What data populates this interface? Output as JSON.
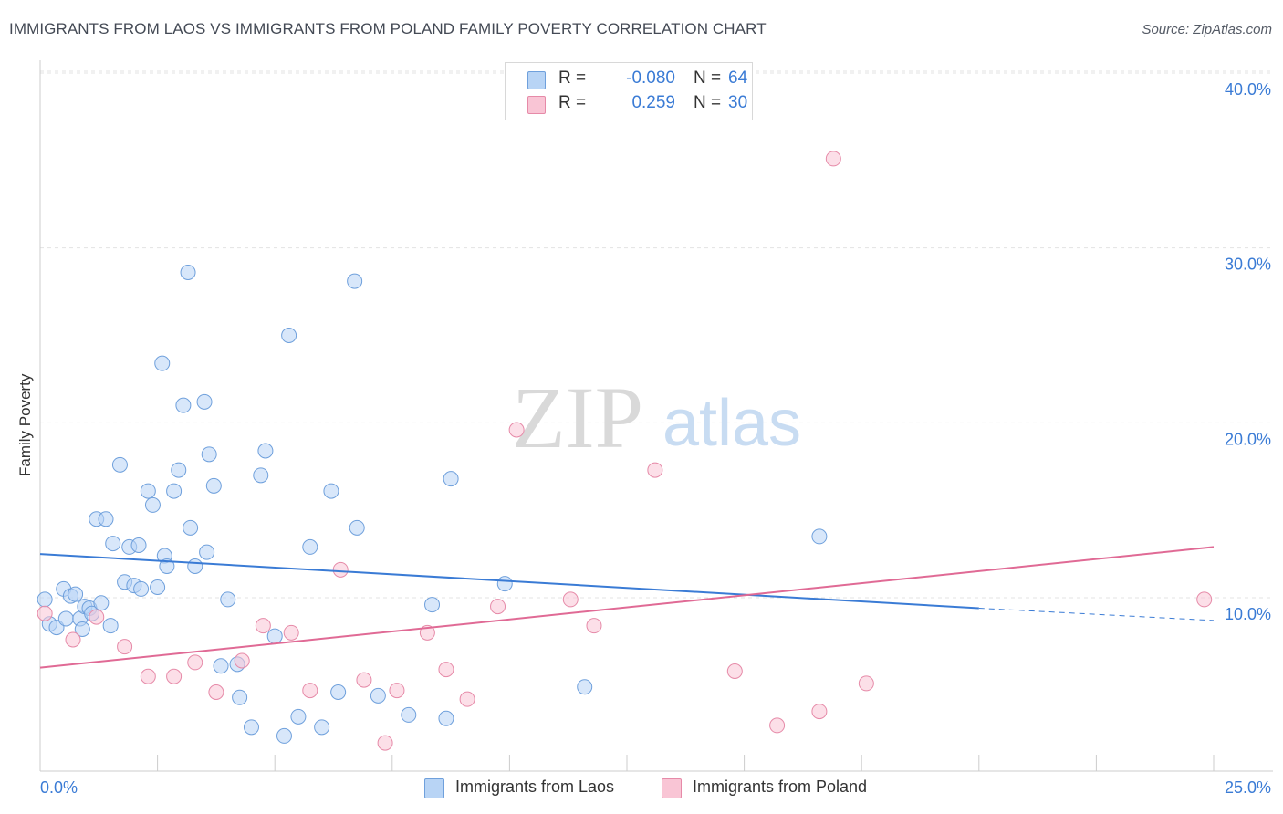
{
  "title": "IMMIGRANTS FROM LAOS VS IMMIGRANTS FROM POLAND FAMILY POVERTY CORRELATION CHART",
  "source": "Source: ZipAtlas.com",
  "watermark": {
    "zip": "ZIP",
    "atlas": "atlas"
  },
  "legend": {
    "rows": [
      {
        "r_label": "R =",
        "r_value": "-0.080",
        "n_label": "N =",
        "n_value": "64",
        "color": "#b8d4f5",
        "border": "#6fa0dc"
      },
      {
        "r_label": "R =",
        "r_value": "0.259",
        "n_label": "N =",
        "n_value": "30",
        "color": "#f9c5d5",
        "border": "#e68aa8"
      }
    ]
  },
  "bottom_legend": [
    {
      "label": "Immigrants from Laos",
      "color": "#b8d4f5",
      "border": "#6fa0dc"
    },
    {
      "label": "Immigrants from Poland",
      "color": "#f9c5d5",
      "border": "#e68aa8"
    }
  ],
  "chart_data": {
    "type": "scatter",
    "title": "IMMIGRANTS FROM LAOS VS IMMIGRANTS FROM POLAND FAMILY POVERTY CORRELATION CHART",
    "xlabel": "",
    "ylabel": "Family Poverty",
    "xlim": [
      0,
      25
    ],
    "ylim": [
      0,
      40
    ],
    "x_tick_labels": [
      "0.0%",
      "25.0%"
    ],
    "y_ticks": [
      10,
      20,
      30,
      40
    ],
    "y_tick_labels": [
      "10.0%",
      "20.0%",
      "30.0%",
      "40.0%"
    ],
    "grid": true,
    "legend_position": "top-center",
    "colors": {
      "laos": "#3a7bd5",
      "poland": "#e06a95",
      "laos_fill": "#b8d4f5",
      "poland_fill": "#f9c5d5"
    },
    "series": [
      {
        "name": "Immigrants from Laos",
        "r": -0.08,
        "n": 64,
        "trend": {
          "x": [
            0,
            20
          ],
          "y": [
            12.5,
            9.4
          ],
          "dashed_to_x": 25,
          "dashed_end_y": 8.7
        },
        "points": [
          [
            0.1,
            9.9
          ],
          [
            0.2,
            8.5
          ],
          [
            0.35,
            8.3
          ],
          [
            0.5,
            10.5
          ],
          [
            0.55,
            8.8
          ],
          [
            0.65,
            10.1
          ],
          [
            0.75,
            10.2
          ],
          [
            0.85,
            8.8
          ],
          [
            0.95,
            9.5
          ],
          [
            1.05,
            9.4
          ],
          [
            1.1,
            9.1
          ],
          [
            1.3,
            9.7
          ],
          [
            1.2,
            14.5
          ],
          [
            1.4,
            14.5
          ],
          [
            1.55,
            13.1
          ],
          [
            1.7,
            17.6
          ],
          [
            1.8,
            10.9
          ],
          [
            1.9,
            12.9
          ],
          [
            2.0,
            10.7
          ],
          [
            2.1,
            13.0
          ],
          [
            2.15,
            10.5
          ],
          [
            2.3,
            16.1
          ],
          [
            2.4,
            15.3
          ],
          [
            2.5,
            10.6
          ],
          [
            2.6,
            23.4
          ],
          [
            2.65,
            12.4
          ],
          [
            2.7,
            11.8
          ],
          [
            2.85,
            16.1
          ],
          [
            2.95,
            17.3
          ],
          [
            3.05,
            21.0
          ],
          [
            3.15,
            28.6
          ],
          [
            3.2,
            14.0
          ],
          [
            3.3,
            11.8
          ],
          [
            3.5,
            21.2
          ],
          [
            3.55,
            12.6
          ],
          [
            3.6,
            18.2
          ],
          [
            3.7,
            16.4
          ],
          [
            3.85,
            6.1
          ],
          [
            4.0,
            9.9
          ],
          [
            4.2,
            6.2
          ],
          [
            4.25,
            4.3
          ],
          [
            4.5,
            2.6
          ],
          [
            4.7,
            17.0
          ],
          [
            4.8,
            18.4
          ],
          [
            5.0,
            7.8
          ],
          [
            5.2,
            2.1
          ],
          [
            5.3,
            25.0
          ],
          [
            5.5,
            3.2
          ],
          [
            5.75,
            12.9
          ],
          [
            6.0,
            2.6
          ],
          [
            6.2,
            16.1
          ],
          [
            6.35,
            4.6
          ],
          [
            6.7,
            28.1
          ],
          [
            6.75,
            14.0
          ],
          [
            7.2,
            4.4
          ],
          [
            7.85,
            3.3
          ],
          [
            8.35,
            9.6
          ],
          [
            8.65,
            3.1
          ],
          [
            8.75,
            16.8
          ],
          [
            9.9,
            10.8
          ],
          [
            11.6,
            4.9
          ],
          [
            16.6,
            13.5
          ],
          [
            0.9,
            8.2
          ],
          [
            1.5,
            8.4
          ]
        ]
      },
      {
        "name": "Immigrants from Poland",
        "r": 0.259,
        "n": 30,
        "trend": {
          "x": [
            0,
            25
          ],
          "y": [
            6.0,
            12.9
          ]
        },
        "points": [
          [
            0.1,
            9.1
          ],
          [
            0.7,
            7.6
          ],
          [
            1.2,
            8.9
          ],
          [
            1.8,
            7.2
          ],
          [
            2.3,
            5.5
          ],
          [
            2.85,
            5.5
          ],
          [
            3.3,
            6.3
          ],
          [
            3.75,
            4.6
          ],
          [
            4.3,
            6.4
          ],
          [
            4.75,
            8.4
          ],
          [
            5.35,
            8.0
          ],
          [
            5.75,
            4.7
          ],
          [
            6.4,
            11.6
          ],
          [
            6.9,
            5.3
          ],
          [
            7.35,
            1.7
          ],
          [
            7.6,
            4.7
          ],
          [
            8.25,
            8.0
          ],
          [
            8.65,
            5.9
          ],
          [
            9.1,
            4.2
          ],
          [
            9.75,
            9.5
          ],
          [
            10.15,
            19.6
          ],
          [
            11.3,
            9.9
          ],
          [
            11.8,
            8.4
          ],
          [
            13.1,
            17.3
          ],
          [
            14.8,
            5.8
          ],
          [
            15.7,
            2.7
          ],
          [
            16.6,
            3.5
          ],
          [
            16.9,
            35.1
          ],
          [
            17.6,
            5.1
          ],
          [
            24.8,
            9.9
          ]
        ]
      }
    ]
  }
}
